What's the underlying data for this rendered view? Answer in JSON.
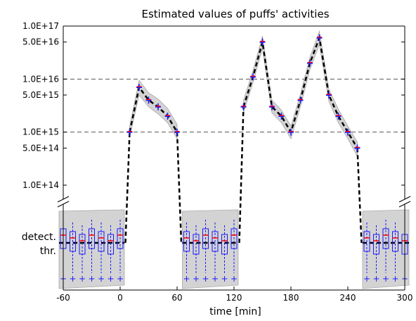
{
  "chart_data": {
    "type": "line",
    "title": "Estimated values of puffs' activities",
    "xlabel": "time [min]",
    "ylabel": "",
    "x_ticks": [
      "-60",
      "0",
      "60",
      "120",
      "180",
      "240",
      "300"
    ],
    "x_tick_values": [
      -60,
      0,
      60,
      120,
      180,
      240,
      300
    ],
    "xlim": [
      -60,
      300
    ],
    "y_scale": "log",
    "ylim": [
      "1.0E+14",
      "1.0E+17"
    ],
    "y_ticks": [
      "1.0E+17",
      "5.0E+16",
      "1.0E+16",
      "5.0E+15",
      "1.0E+15",
      "5.0E+14",
      "1.0E+14"
    ],
    "y_tick_values": [
      1e+17,
      5e+16,
      1e+16,
      5000000000000000.0,
      1000000000000000.0,
      500000000000000.0,
      100000000000000.0
    ],
    "y_reference_lines": [
      1e+16,
      1000000000000000.0
    ],
    "lower_panel_labels": [
      "detect.",
      "thr."
    ],
    "grid": false,
    "colors": {
      "median_line": "#000000",
      "band": "#d3d3d3",
      "box": "#1a1aff",
      "median_marker": "#ff0000"
    },
    "series": [
      {
        "x": [
          10,
          20,
          30,
          40,
          50,
          60,
          130,
          140,
          150,
          160,
          170,
          180,
          190,
          200,
          210,
          220,
          230,
          240,
          250
        ],
        "values": [
          1000000000000000.0,
          7000000000000000.0,
          4000000000000000.0,
          3000000000000000.0,
          2000000000000000.0,
          1000000000000000.0,
          3000000000000000.0,
          1.1e+16,
          5e+16,
          3000000000000000.0,
          2000000000000000.0,
          1000000000000000.0,
          4000000000000000.0,
          2e+16,
          6e+16,
          5000000000000000.0,
          2000000000000000.0,
          1000000000000000.0,
          500000000000000.0
        ],
        "band_low": [
          800000000000000.0,
          5000000000000000.0,
          3000000000000000.0,
          2200000000000000.0,
          1500000000000000.0,
          750000000000000.0,
          2300000000000000.0,
          8500000000000000.0,
          3.8e+16,
          2300000000000000.0,
          1500000000000000.0,
          750000000000000.0,
          3000000000000000.0,
          1.5e+16,
          4.5e+16,
          3800000000000000.0,
          1500000000000000.0,
          750000000000000.0,
          350000000000000.0
        ],
        "band_high": [
          1300000000000000.0,
          9500000000000000.0,
          5500000000000000.0,
          4200000000000000.0,
          2800000000000000.0,
          1400000000000000.0,
          4000000000000000.0,
          1.45e+16,
          6.5e+16,
          4000000000000000.0,
          2600000000000000.0,
          1300000000000000.0,
          5200000000000000.0,
          2.6e+16,
          8e+16,
          6500000000000000.0,
          2700000000000000.0,
          1300000000000000.0,
          650000000000000.0
        ]
      }
    ],
    "below_threshold_x": [
      -60,
      -50,
      -40,
      -30,
      -20,
      -10,
      0,
      70,
      80,
      90,
      100,
      110,
      120,
      260,
      270,
      280,
      290,
      300
    ]
  }
}
